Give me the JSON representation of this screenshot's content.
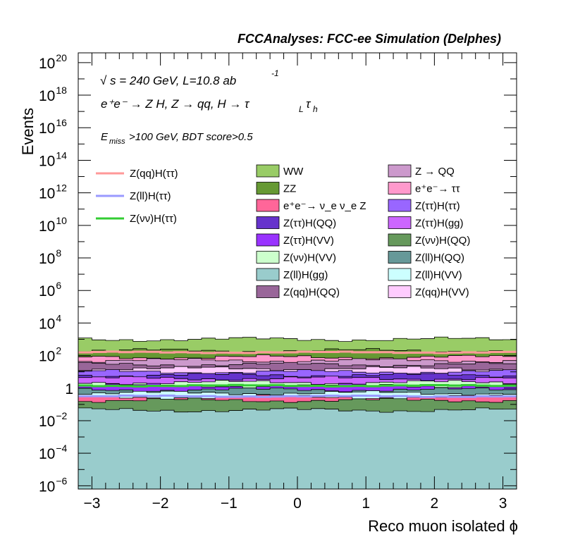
{
  "chart_data": {
    "type": "stacked-histogram",
    "title": "FCCAnalyses: FCC-ee Simulation (Delphes)",
    "annotations": {
      "sqrt": "√",
      "line1_sup": "-1",
      "line1": "s = 240 GeV, L=10.8 ab",
      "line2": "e⁺e⁻ → Z H, Z  → qq, H  → τ",
      "line2_sub1": "L",
      "line2_tau": "τ",
      "line2_sub2": "h",
      "line3_E": "E",
      "line3_sub": "miss",
      "line3_rest": ">100 GeV, BDT score>0.5"
    },
    "xlabel": "Reco muon isolated ϕ",
    "ylabel": "Events",
    "xlim": [
      -3.2,
      3.2
    ],
    "ylim_log10": [
      -6.2,
      20.6
    ],
    "yscale": "log",
    "n_bins": 32,
    "x_ticks": [
      {
        "v": -3,
        "label": "−3"
      },
      {
        "v": -2,
        "label": "−2"
      },
      {
        "v": -1,
        "label": "−1"
      },
      {
        "v": 0,
        "label": "0"
      },
      {
        "v": 1,
        "label": "1"
      },
      {
        "v": 2,
        "label": "2"
      },
      {
        "v": 3,
        "label": "3"
      }
    ],
    "y_ticks": [
      {
        "exp": -6,
        "base": "10",
        "sup": "−6"
      },
      {
        "exp": -4,
        "base": "10",
        "sup": "−4"
      },
      {
        "exp": -2,
        "base": "10",
        "sup": "−2"
      },
      {
        "exp": 0,
        "base": "1",
        "sup": ""
      },
      {
        "exp": 2,
        "base": "10",
        "sup": "2"
      },
      {
        "exp": 4,
        "base": "10",
        "sup": "4"
      },
      {
        "exp": 6,
        "base": "10",
        "sup": "6"
      },
      {
        "exp": 8,
        "base": "10",
        "sup": "8"
      },
      {
        "exp": 10,
        "base": "10",
        "sup": "10"
      },
      {
        "exp": 12,
        "base": "10",
        "sup": "12"
      },
      {
        "exp": 14,
        "base": "10",
        "sup": "14"
      },
      {
        "exp": 16,
        "base": "10",
        "sup": "16"
      },
      {
        "exp": 18,
        "base": "10",
        "sup": "18"
      },
      {
        "exp": 20,
        "base": "10",
        "sup": "20"
      }
    ],
    "stack_levels_log10": [
      {
        "name": "Z(ll)H(gg)",
        "color": "#99cccc",
        "level": -1.35
      },
      {
        "name": "Z(νν)H(QQ)",
        "color": "#66995c",
        "level": -0.75
      },
      {
        "name": "e⁺e⁻→ ν_e ν_e Z",
        "color": "#ff6699",
        "level": -0.55
      },
      {
        "name": "Z(ll)H(VV)",
        "color": "#ccffff",
        "level": -0.3
      },
      {
        "name": "Z(ll)H(QQ)",
        "color": "#669999",
        "level": -0.1
      },
      {
        "name": "Z(ττ)H(VV)",
        "color": "#9933ff",
        "level": 0.15
      },
      {
        "name": "Z(νν)H(VV)",
        "color": "#ccffcc",
        "level": 0.35
      },
      {
        "name": "Z(ττ)H(gg)",
        "color": "#cc66ff",
        "level": 0.6
      },
      {
        "name": "Z(ττ)H(QQ)",
        "color": "#6633cc",
        "level": 0.8
      },
      {
        "name": "Z(ττ)H(ττ)",
        "color": "#9966ff",
        "level": 1.0
      },
      {
        "name": "Z(qq)H(VV)",
        "color": "#ffccff",
        "level": 1.2
      },
      {
        "name": "Z(qq)H(QQ)",
        "color": "#996699",
        "level": 1.45
      },
      {
        "name": "Z → QQ",
        "color": "#cc99cc",
        "level": 1.7
      },
      {
        "name": "e⁺e⁻→ ττ",
        "color": "#ff99cc",
        "level": 1.9
      },
      {
        "name": "ZZ",
        "color": "#669933",
        "level": 2.3
      },
      {
        "name": "WW",
        "color": "#99cc66",
        "level": 3.0
      }
    ],
    "signal_lines_log10": [
      {
        "name": "Z(qq)H(ττ)",
        "color": "#ff9999",
        "level": 2.2
      },
      {
        "name": "Z(νν)H(ττ)",
        "color": "#33cc33",
        "level": 0.15
      },
      {
        "name": "Z(ll)H(ττ)",
        "color": "#9999ff",
        "level": -0.5
      }
    ],
    "legend_lines": [
      {
        "name": "Z(qq)H(ττ)",
        "color": "#ff9999"
      },
      {
        "name": "Z(ll)H(ττ)",
        "color": "#9999ff"
      },
      {
        "name": "Z(νν)H(ττ)",
        "color": "#33cc33"
      }
    ],
    "legend_boxes": [
      {
        "name": "WW",
        "color": "#99cc66"
      },
      {
        "name": "ZZ",
        "color": "#669933"
      },
      {
        "name": "e⁺e⁻→ ν_e ν_e Z",
        "color": "#ff6699"
      },
      {
        "name": "Z(ττ)H(QQ)",
        "color": "#6633cc"
      },
      {
        "name": "Z(ττ)H(VV)",
        "color": "#9933ff"
      },
      {
        "name": "Z(νν)H(VV)",
        "color": "#ccffcc"
      },
      {
        "name": "Z(ll)H(gg)",
        "color": "#99cccc"
      },
      {
        "name": "Z(qq)H(QQ)",
        "color": "#996699"
      },
      {
        "name": "Z → QQ",
        "color": "#cc99cc"
      },
      {
        "name": "e⁺e⁻→ ττ",
        "color": "#ff99cc"
      },
      {
        "name": "Z(ττ)H(ττ)",
        "color": "#9966ff"
      },
      {
        "name": "Z(ττ)H(gg)",
        "color": "#cc66ff"
      },
      {
        "name": "Z(νν)H(QQ)",
        "color": "#66995c"
      },
      {
        "name": "Z(ll)H(QQ)",
        "color": "#669999"
      },
      {
        "name": "Z(ll)H(VV)",
        "color": "#ccffff"
      },
      {
        "name": "Z(qq)H(VV)",
        "color": "#ffccff"
      }
    ],
    "legend": "top"
  }
}
